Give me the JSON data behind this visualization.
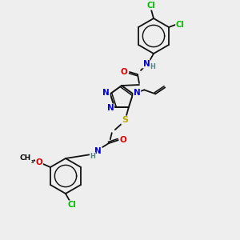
{
  "bg_color": "#eeeeee",
  "atom_colors": {
    "C": "#000000",
    "N": "#0000dd",
    "O": "#dd0000",
    "S": "#bbaa00",
    "Cl": "#00bb00",
    "H": "#558888"
  },
  "bond_color": "#111111",
  "lw": 1.3
}
